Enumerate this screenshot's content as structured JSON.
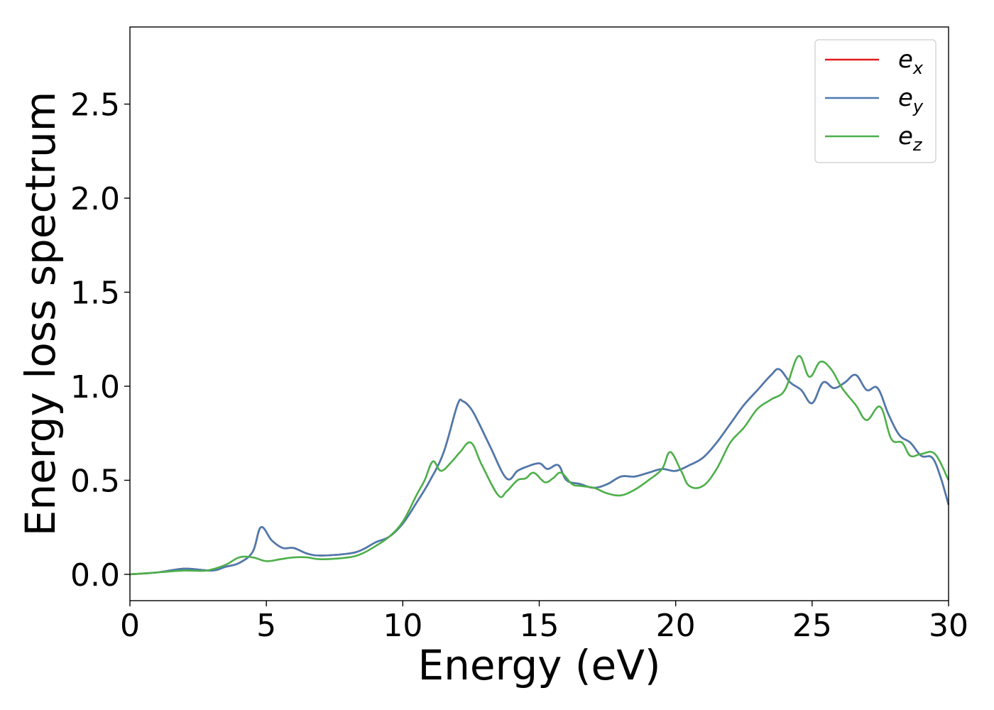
{
  "chart_data": {
    "type": "line",
    "title": "",
    "xlabel": "Energy (eV)",
    "ylabel": "Energy loss spectrum",
    "xlim": [
      0,
      30
    ],
    "ylim": [
      -0.14,
      2.91
    ],
    "xticks": [
      0,
      5,
      10,
      15,
      20,
      25,
      30
    ],
    "xtick_labels": [
      "0",
      "5",
      "10",
      "15",
      "20",
      "25",
      "30"
    ],
    "yticks": [
      0.0,
      0.5,
      1.0,
      1.5,
      2.0,
      2.5
    ],
    "ytick_labels": [
      "0.0",
      "0.5",
      "1.0",
      "1.5",
      "2.0",
      "2.5"
    ],
    "grid": false,
    "legend_position": "top-right",
    "series": [
      {
        "name": "e_x",
        "legend_base": "e",
        "legend_sub": "x",
        "color": "#e41a1c",
        "x": [
          0,
          1,
          2,
          3,
          3.5,
          4,
          4.5,
          4.8,
          5.2,
          5.6,
          6,
          6.5,
          7,
          8,
          8.5,
          9,
          9.5,
          10,
          10.5,
          11,
          11.5,
          12,
          12.2,
          12.5,
          12.8,
          13.2,
          13.8,
          14.2,
          14.5,
          15,
          15.3,
          15.7,
          16,
          16.5,
          17,
          17.5,
          18,
          18.5,
          19,
          19.5,
          20,
          20.5,
          21,
          21.5,
          22,
          22.5,
          23,
          23.5,
          23.8,
          24.2,
          24.6,
          25,
          25.4,
          25.8,
          26.2,
          26.6,
          27,
          27.4,
          27.8,
          28.2,
          28.6,
          29,
          29.4,
          29.7,
          30
        ],
        "y": [
          0.0,
          0.01,
          0.03,
          0.02,
          0.04,
          0.06,
          0.12,
          0.25,
          0.18,
          0.14,
          0.14,
          0.11,
          0.1,
          0.11,
          0.13,
          0.17,
          0.2,
          0.27,
          0.38,
          0.5,
          0.65,
          0.9,
          0.92,
          0.88,
          0.8,
          0.68,
          0.51,
          0.55,
          0.57,
          0.59,
          0.56,
          0.58,
          0.5,
          0.48,
          0.46,
          0.48,
          0.52,
          0.52,
          0.54,
          0.56,
          0.55,
          0.58,
          0.62,
          0.7,
          0.8,
          0.9,
          0.98,
          1.06,
          1.09,
          1.02,
          0.98,
          0.91,
          1.02,
          0.99,
          1.02,
          1.06,
          0.98,
          0.99,
          0.85,
          0.74,
          0.7,
          0.63,
          0.62,
          0.52,
          0.37
        ]
      },
      {
        "name": "e_y",
        "legend_base": "e",
        "legend_sub": "y",
        "color": "#4a7bb0",
        "x": [
          0,
          1,
          2,
          3,
          3.5,
          4,
          4.5,
          4.8,
          5.2,
          5.6,
          6,
          6.5,
          7,
          8,
          8.5,
          9,
          9.5,
          10,
          10.5,
          11,
          11.5,
          12,
          12.2,
          12.5,
          12.8,
          13.2,
          13.8,
          14.2,
          14.5,
          15,
          15.3,
          15.7,
          16,
          16.5,
          17,
          17.5,
          18,
          18.5,
          19,
          19.5,
          20,
          20.5,
          21,
          21.5,
          22,
          22.5,
          23,
          23.5,
          23.8,
          24.2,
          24.6,
          25,
          25.4,
          25.8,
          26.2,
          26.6,
          27,
          27.4,
          27.8,
          28.2,
          28.6,
          29,
          29.4,
          29.7,
          30
        ],
        "y": [
          0.0,
          0.01,
          0.03,
          0.02,
          0.04,
          0.06,
          0.12,
          0.25,
          0.18,
          0.14,
          0.14,
          0.11,
          0.1,
          0.11,
          0.13,
          0.17,
          0.2,
          0.27,
          0.38,
          0.5,
          0.65,
          0.9,
          0.92,
          0.88,
          0.8,
          0.68,
          0.51,
          0.55,
          0.57,
          0.59,
          0.56,
          0.58,
          0.5,
          0.48,
          0.46,
          0.48,
          0.52,
          0.52,
          0.54,
          0.56,
          0.55,
          0.58,
          0.62,
          0.7,
          0.8,
          0.9,
          0.98,
          1.06,
          1.09,
          1.02,
          0.98,
          0.91,
          1.02,
          0.99,
          1.02,
          1.06,
          0.98,
          0.99,
          0.85,
          0.74,
          0.7,
          0.63,
          0.62,
          0.52,
          0.37
        ]
      },
      {
        "name": "e_z",
        "legend_base": "e",
        "legend_sub": "z",
        "color": "#4daf4a",
        "x": [
          0,
          1,
          2,
          2.8,
          3.5,
          4,
          4.5,
          5,
          5.5,
          6,
          6.5,
          7,
          8,
          8.5,
          9,
          9.5,
          10,
          10.5,
          10.8,
          11.1,
          11.4,
          11.8,
          12.1,
          12.5,
          12.9,
          13.5,
          13.8,
          14.2,
          14.5,
          14.8,
          15.2,
          15.5,
          15.8,
          16.2,
          16.5,
          17,
          17.5,
          18,
          18.5,
          19,
          19.5,
          19.8,
          20.2,
          20.5,
          21,
          21.5,
          22,
          22.5,
          23,
          23.5,
          24,
          24.5,
          24.9,
          25.3,
          25.7,
          26.1,
          26.6,
          27,
          27.5,
          27.9,
          28.3,
          28.6,
          29,
          29.5,
          30
        ],
        "y": [
          0.0,
          0.01,
          0.02,
          0.02,
          0.05,
          0.09,
          0.09,
          0.07,
          0.08,
          0.09,
          0.09,
          0.08,
          0.09,
          0.11,
          0.15,
          0.2,
          0.28,
          0.42,
          0.5,
          0.6,
          0.55,
          0.6,
          0.65,
          0.7,
          0.58,
          0.42,
          0.44,
          0.5,
          0.51,
          0.54,
          0.49,
          0.51,
          0.54,
          0.48,
          0.47,
          0.46,
          0.43,
          0.42,
          0.45,
          0.5,
          0.56,
          0.65,
          0.55,
          0.47,
          0.47,
          0.56,
          0.7,
          0.78,
          0.88,
          0.93,
          0.98,
          1.16,
          1.05,
          1.13,
          1.09,
          0.99,
          0.9,
          0.82,
          0.89,
          0.72,
          0.7,
          0.63,
          0.64,
          0.64,
          0.5
        ]
      }
    ]
  }
}
